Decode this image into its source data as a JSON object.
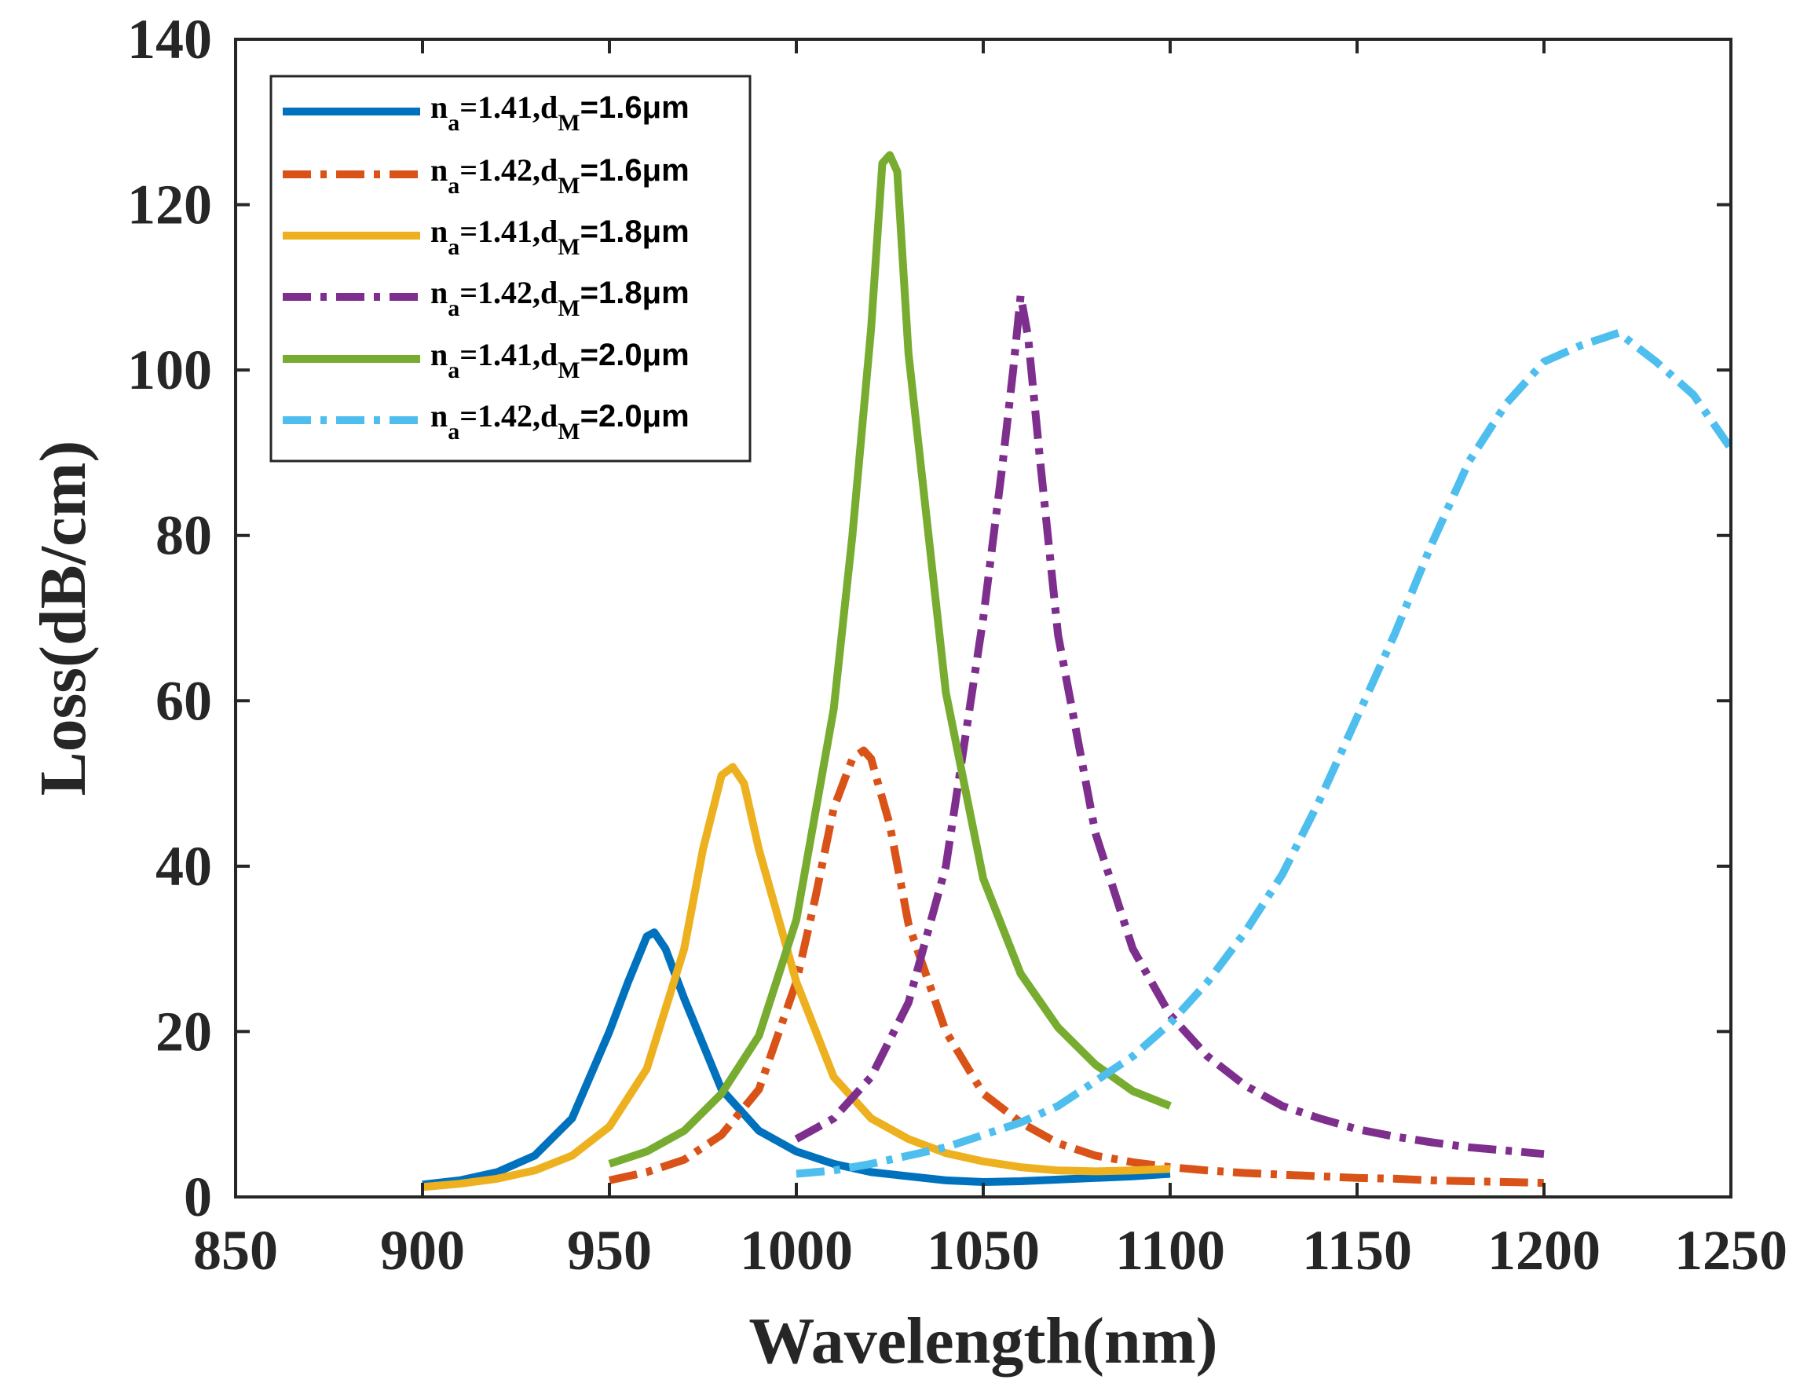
{
  "chart_data": {
    "type": "line",
    "title": "",
    "xlabel": "Wavelength(nm)",
    "ylabel": "Loss(dB/cm)",
    "xlim": [
      850,
      1250
    ],
    "ylim": [
      0,
      140
    ],
    "xticks": [
      850,
      900,
      950,
      1000,
      1050,
      1100,
      1150,
      1200,
      1250
    ],
    "yticks": [
      0,
      20,
      40,
      60,
      80,
      100,
      120,
      140
    ],
    "legend_position": "top-left",
    "grid": false,
    "series": [
      {
        "name": "n_a=1.41,d_M=1.6μm",
        "legend": {
          "n": "n",
          "a": "a",
          "value1": "=1.41,",
          "d": "d",
          "M": "M",
          "value2": "=1.6μm"
        },
        "color": "#0072BD",
        "style": "solid",
        "x": [
          900,
          910,
          920,
          930,
          940,
          950,
          955,
          960,
          962,
          965,
          970,
          980,
          990,
          1000,
          1010,
          1020,
          1030,
          1040,
          1050,
          1060,
          1070,
          1080,
          1090,
          1100
        ],
        "y": [
          1.5,
          2,
          3,
          5,
          9.5,
          20,
          26,
          31.5,
          32,
          30,
          24,
          13,
          8,
          5.5,
          4,
          3,
          2.5,
          2,
          1.8,
          1.9,
          2.1,
          2.3,
          2.5,
          2.8
        ]
      },
      {
        "name": "n_a=1.42,d_M=1.6μm",
        "legend": {
          "n": "n",
          "a": "a",
          "value1": "=1.42,",
          "d": "d",
          "M": "M",
          "value2": "=1.6μm"
        },
        "color": "#D95319",
        "style": "dashdot",
        "x": [
          950,
          960,
          970,
          980,
          990,
          1000,
          1005,
          1010,
          1015,
          1018,
          1020,
          1025,
          1030,
          1040,
          1050,
          1060,
          1070,
          1080,
          1090,
          1100,
          1110,
          1120,
          1130,
          1140,
          1150,
          1160,
          1170,
          1180,
          1190,
          1200
        ],
        "y": [
          2,
          3,
          4.5,
          7.5,
          13,
          26,
          36,
          47,
          53,
          54,
          53,
          45,
          33,
          20,
          12.5,
          9,
          6.5,
          5,
          4.2,
          3.6,
          3.2,
          2.9,
          2.7,
          2.5,
          2.3,
          2.2,
          2.0,
          1.9,
          1.8,
          1.7
        ]
      },
      {
        "name": "n_a=1.41,d_M=1.8μm",
        "legend": {
          "n": "n",
          "a": "a",
          "value1": "=1.41,",
          "d": "d",
          "M": "M",
          "value2": "=1.8μm"
        },
        "color": "#EDB120",
        "style": "solid",
        "x": [
          900,
          910,
          920,
          930,
          940,
          950,
          960,
          970,
          975,
          980,
          983,
          986,
          990,
          1000,
          1010,
          1020,
          1030,
          1040,
          1050,
          1060,
          1070,
          1080,
          1090,
          1100
        ],
        "y": [
          1.2,
          1.6,
          2.2,
          3.2,
          5,
          8.5,
          15.5,
          30,
          42,
          51,
          52,
          50,
          42,
          26,
          14.5,
          9.5,
          7,
          5.3,
          4.3,
          3.6,
          3.2,
          3.1,
          3.2,
          3.4
        ]
      },
      {
        "name": "n_a=1.42,d_M=1.8μm",
        "legend": {
          "n": "n",
          "a": "a",
          "value1": "=1.42,",
          "d": "d",
          "M": "M",
          "value2": "=1.8μm"
        },
        "color": "#7E2F8E",
        "style": "dashdot",
        "x": [
          1000,
          1010,
          1020,
          1030,
          1040,
          1045,
          1050,
          1055,
          1058,
          1060,
          1062,
          1065,
          1070,
          1080,
          1090,
          1100,
          1110,
          1120,
          1130,
          1140,
          1150,
          1160,
          1170,
          1180,
          1190,
          1200
        ],
        "y": [
          7,
          9.5,
          14.5,
          23.5,
          40,
          55,
          70,
          88,
          100,
          109,
          104,
          90,
          68,
          44,
          30,
          22,
          17,
          13.5,
          11,
          9.5,
          8.2,
          7.3,
          6.6,
          6.0,
          5.6,
          5.2
        ]
      },
      {
        "name": "n_a=1.41,d_M=2.0μm",
        "legend": {
          "n": "n",
          "a": "a",
          "value1": "=1.41,",
          "d": "d",
          "M": "M",
          "value2": "=2.0μm"
        },
        "color": "#77AC30",
        "style": "solid",
        "x": [
          950,
          960,
          970,
          980,
          990,
          1000,
          1010,
          1015,
          1020,
          1023,
          1025,
          1027,
          1030,
          1040,
          1050,
          1060,
          1070,
          1080,
          1090,
          1100
        ],
        "y": [
          4,
          5.5,
          8,
          12.5,
          19.5,
          33.5,
          59,
          80,
          105,
          125,
          126,
          124,
          102,
          61,
          38.5,
          27,
          20.5,
          16,
          12.8,
          11
        ]
      },
      {
        "name": "n_a=1.42,d_M=2.0μm",
        "legend": {
          "n": "n",
          "a": "a",
          "value1": "=1.42,",
          "d": "d",
          "M": "M",
          "value2": "=2.0μm"
        },
        "color": "#4DBEEE",
        "style": "dashdot",
        "x": [
          1000,
          1010,
          1020,
          1030,
          1040,
          1050,
          1060,
          1070,
          1080,
          1090,
          1100,
          1110,
          1120,
          1130,
          1140,
          1150,
          1160,
          1170,
          1180,
          1190,
          1200,
          1210,
          1220,
          1230,
          1240,
          1250
        ],
        "y": [
          2.8,
          3.2,
          4,
          5,
          6,
          7.5,
          9,
          11,
          14,
          17,
          21,
          26,
          32,
          39,
          48,
          58,
          68,
          79,
          89,
          96,
          101,
          103,
          104.5,
          101,
          97,
          90.5
        ]
      }
    ]
  }
}
